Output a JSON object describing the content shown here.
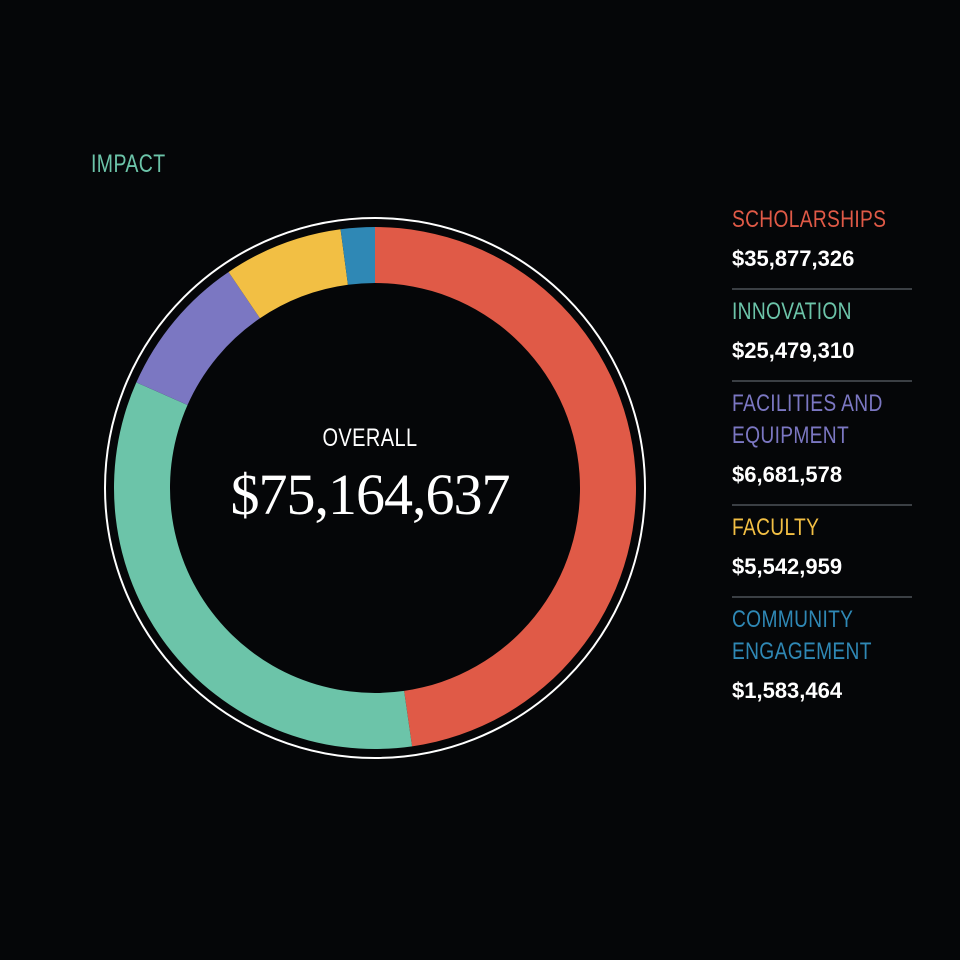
{
  "title": "IMPACT",
  "center": {
    "label": "OVERALL",
    "total": "$75,164,637"
  },
  "chart_data": {
    "type": "pie",
    "title": "IMPACT",
    "total": 75164637,
    "slices": [
      {
        "label": "SCHOLARSHIPS",
        "value": 35877326,
        "display": "$35,877,326",
        "color": "#e05a47"
      },
      {
        "label": "INNOVATION",
        "value": 25479310,
        "display": "$25,479,310",
        "color": "#6cc4a9"
      },
      {
        "label": "FACILITIES AND EQUIPMENT",
        "value": 6681578,
        "display": "$6,681,578",
        "color": "#7b77c2"
      },
      {
        "label": "FACULTY",
        "value": 5542959,
        "display": "$5,542,959",
        "color": "#f2bf44"
      },
      {
        "label": "COMMUNITY ENGAGEMENT",
        "value": 1583464,
        "display": "$1,583,464",
        "color": "#2f88b5"
      }
    ]
  }
}
